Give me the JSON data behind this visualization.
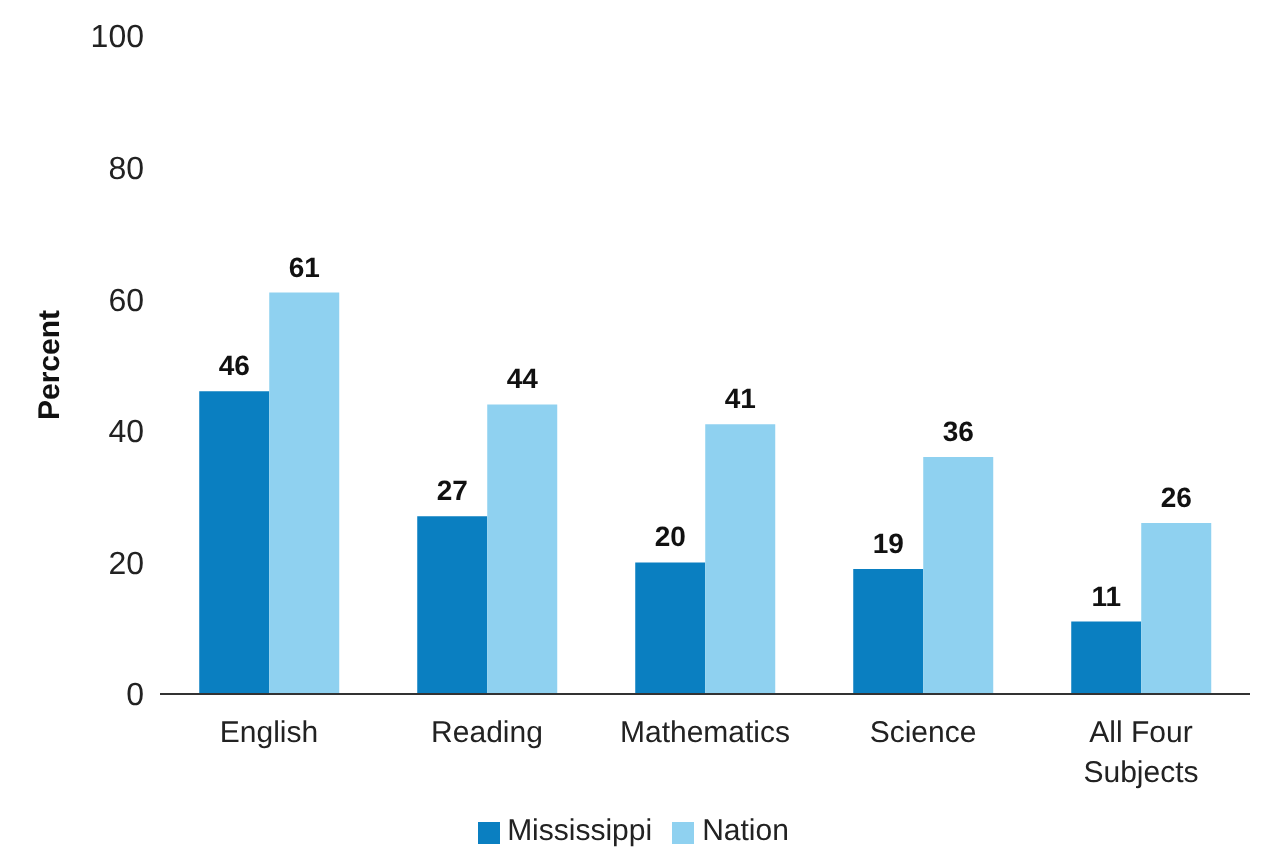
{
  "chart_data": {
    "type": "bar",
    "ylabel": "Percent",
    "categories": [
      "English",
      "Reading",
      "Mathematics",
      "Science",
      "All Four Subjects"
    ],
    "series": [
      {
        "name": "Mississippi",
        "color": "#0a7fc1",
        "values": [
          46,
          27,
          20,
          19,
          11
        ]
      },
      {
        "name": "Nation",
        "color": "#8fd1f0",
        "values": [
          61,
          44,
          41,
          36,
          26
        ]
      }
    ],
    "ylim": [
      0,
      100
    ],
    "yticks": [
      0,
      20,
      40,
      60,
      80,
      100
    ],
    "grid": false,
    "legend": "bottom",
    "data_labels": true
  }
}
